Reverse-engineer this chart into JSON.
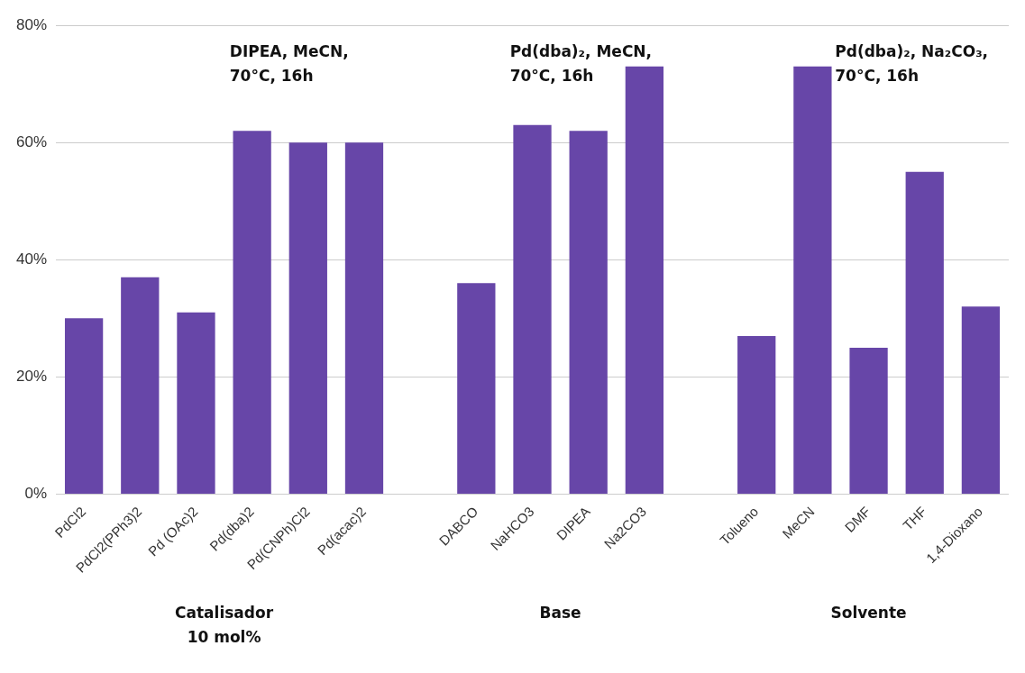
{
  "chart_data": {
    "type": "bar",
    "categories": [
      "PdCl2",
      "PdCl2(PPh3)2",
      "Pd (OAc)2",
      "Pd(dba)2",
      "Pd(CNPh)Cl2",
      "Pd(acac)2",
      null,
      "DABCO",
      "NaHCO3",
      "DIPEA",
      "Na2CO3",
      null,
      "Tolueno",
      "MeCN",
      "DMF",
      "THF",
      "1,4-Dioxano"
    ],
    "values": [
      30,
      37,
      31,
      62,
      60,
      60,
      null,
      36,
      63,
      62,
      73,
      null,
      27,
      73,
      25,
      55,
      32
    ],
    "color": "#6746a8",
    "ylim": [
      0,
      80
    ],
    "yticks": [
      {
        "value": 0,
        "label": "0%"
      },
      {
        "value": 20,
        "label": "20%"
      },
      {
        "value": 40,
        "label": "40%"
      },
      {
        "value": 60,
        "label": "60%"
      },
      {
        "value": 80,
        "label": "80%"
      }
    ],
    "grid": "y",
    "annotations": [
      "DIPEA, MeCN,\n70°C, 16h",
      "Pd(dba)₂, MeCN,\n70°C, 16h",
      "Pd(dba)₂, Na₂CO₃,\n70°C, 16h",
      "Catalisador\n10 mol%",
      "Base",
      "Solvente"
    ]
  }
}
